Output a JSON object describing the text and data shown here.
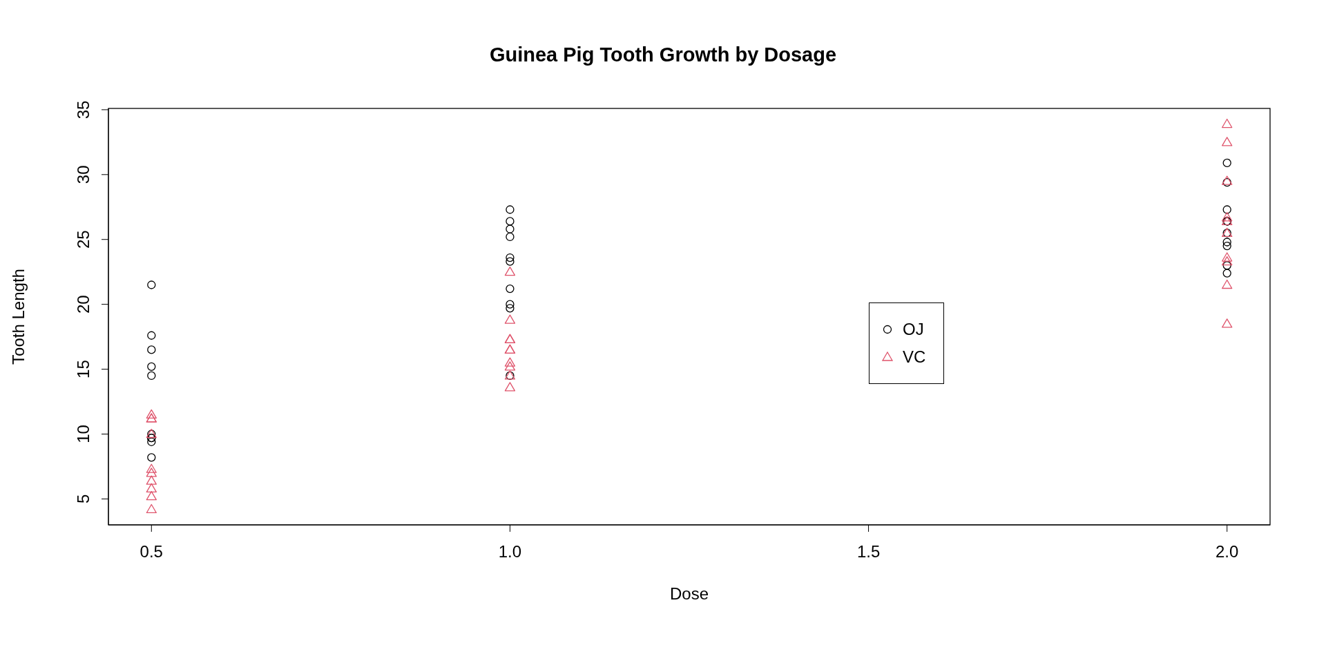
{
  "chart_data": {
    "type": "scatter",
    "title": "Guinea Pig Tooth Growth by Dosage",
    "xlabel": "Dose",
    "ylabel": "Tooth Length",
    "series": [
      {
        "name": "OJ",
        "color": "#000000",
        "marker": "circle",
        "x": [
          0.5,
          0.5,
          0.5,
          0.5,
          0.5,
          0.5,
          0.5,
          0.5,
          0.5,
          0.5,
          1,
          1,
          1,
          1,
          1,
          1,
          1,
          1,
          1,
          1,
          2,
          2,
          2,
          2,
          2,
          2,
          2,
          2,
          2,
          2
        ],
        "values": [
          15.2,
          21.5,
          17.6,
          9.7,
          14.5,
          10,
          8.2,
          9.4,
          16.5,
          9.7,
          19.7,
          23.3,
          23.6,
          26.4,
          20,
          25.2,
          25.8,
          21.2,
          14.5,
          27.3,
          25.5,
          26.4,
          22.4,
          24.5,
          24.8,
          30.9,
          26.4,
          27.3,
          29.4,
          23
        ]
      },
      {
        "name": "VC",
        "color": "#df536b",
        "marker": "triangle",
        "x": [
          0.5,
          0.5,
          0.5,
          0.5,
          0.5,
          0.5,
          0.5,
          0.5,
          0.5,
          0.5,
          1,
          1,
          1,
          1,
          1,
          1,
          1,
          1,
          1,
          1,
          2,
          2,
          2,
          2,
          2,
          2,
          2,
          2,
          2,
          2
        ],
        "values": [
          4.2,
          11.5,
          7.3,
          5.8,
          6.4,
          10,
          11.2,
          11.2,
          5.2,
          7,
          16.5,
          16.5,
          15.2,
          17.3,
          22.5,
          17.3,
          13.6,
          14.5,
          18.8,
          15.5,
          23.6,
          18.5,
          33.9,
          25.5,
          26.4,
          32.5,
          26.7,
          21.5,
          23.3,
          29.5
        ]
      }
    ],
    "xlim": [
      0.44,
      2.06
    ],
    "xticks": [
      {
        "value": 0.5,
        "label": "0.5"
      },
      {
        "value": 1,
        "label": "1.0"
      },
      {
        "value": 1.5,
        "label": "1.5"
      },
      {
        "value": 2,
        "label": "2.0"
      }
    ],
    "ylim": [
      3,
      35.1
    ],
    "yticks": [
      5,
      10,
      15,
      20,
      25,
      30,
      35
    ],
    "legend": "right"
  }
}
